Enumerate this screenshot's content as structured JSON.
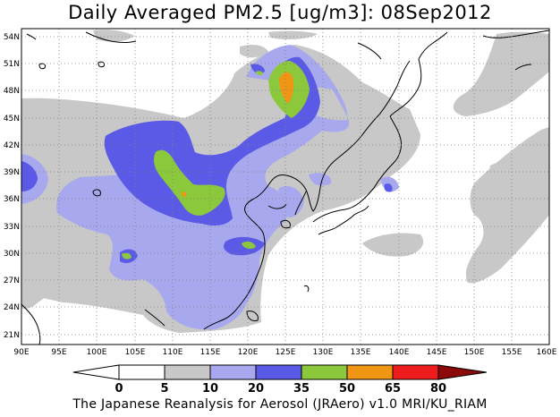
{
  "title": "Daily Averaged PM2.5 [ug/m3]: 08Sep2012",
  "footer": "The Japanese Reanalysis for Aerosol (JRAero) v1.0 MRI/KU_RIAM",
  "map": {
    "lon_range": [
      90,
      160
    ],
    "lat_range": [
      20,
      55
    ],
    "lon_ticks": [
      "90E",
      "95E",
      "100E",
      "105E",
      "110E",
      "115E",
      "120E",
      "125E",
      "130E",
      "135E",
      "140E",
      "145E",
      "150E",
      "155E",
      "160E"
    ],
    "lat_ticks": [
      "54N",
      "51N",
      "48N",
      "45N",
      "42N",
      "39N",
      "36N",
      "33N",
      "30N",
      "27N",
      "24N",
      "21N"
    ],
    "gridlines": true
  },
  "colorbar": {
    "labels": [
      "0",
      "5",
      "10",
      "20",
      "35",
      "50",
      "65",
      "80"
    ],
    "colors": {
      "lt0": "#ffffff",
      "c0_5": "#ffffff",
      "c5_10": "#c8c8c8",
      "c10_20": "#a8a8ef",
      "c20_35": "#5a5ae6",
      "c35_50": "#8cc83c",
      "c50_65": "#f09614",
      "c65_80": "#ee1c1c",
      "gt80": "#8c0a0a"
    }
  }
}
